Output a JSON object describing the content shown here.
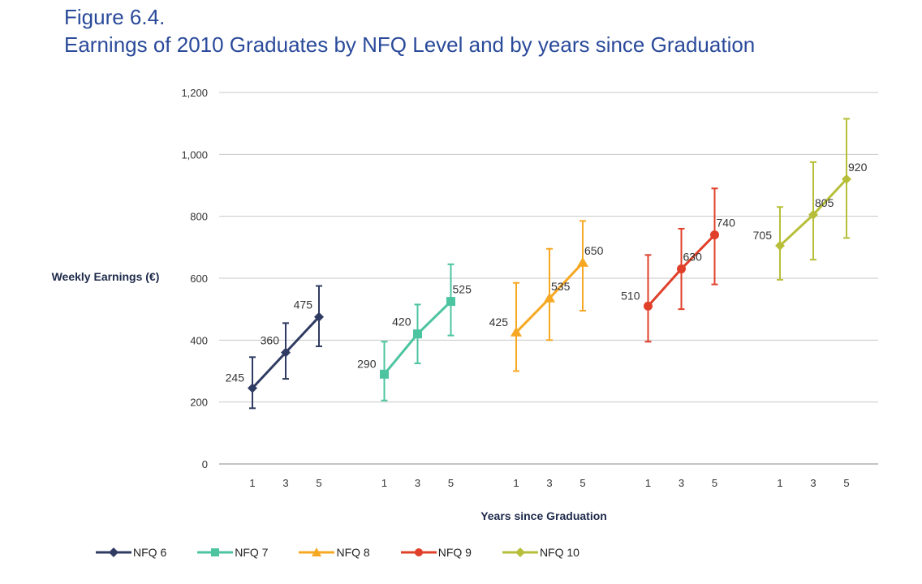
{
  "figure": {
    "number": "Figure 6.4.",
    "title": "Earnings of 2010 Graduates by NFQ Level and by years since Graduation"
  },
  "chart_data": {
    "type": "line",
    "title": "Earnings of 2010 Graduates by NFQ Level and by years since Graduation",
    "xlabel": "Years since Graduation",
    "ylabel": "Weekly Earnings (€)",
    "ylim": [
      0,
      1200
    ],
    "yticks": [
      0,
      200,
      400,
      600,
      800,
      1000,
      1200
    ],
    "ytick_labels": [
      "0",
      "200",
      "400",
      "600",
      "800",
      "1,000",
      "1,200"
    ],
    "grid": true,
    "legend_position": "bottom-left",
    "series": [
      {
        "name": "NFQ 6",
        "color": "#2f3b62",
        "marker": "diamond",
        "x": [
          "1",
          "3",
          "5"
        ],
        "values": [
          245,
          360,
          475
        ],
        "error_low": [
          180,
          275,
          380
        ],
        "error_high": [
          345,
          455,
          575
        ]
      },
      {
        "name": "NFQ 7",
        "color": "#4cc4a0",
        "marker": "square",
        "x": [
          "1",
          "3",
          "5"
        ],
        "values": [
          290,
          420,
          525
        ],
        "error_low": [
          205,
          325,
          415
        ],
        "error_high": [
          395,
          515,
          645
        ]
      },
      {
        "name": "NFQ 8",
        "color": "#f7a823",
        "marker": "triangle",
        "x": [
          "1",
          "3",
          "5"
        ],
        "values": [
          425,
          535,
          650
        ],
        "error_low": [
          300,
          400,
          495
        ],
        "error_high": [
          585,
          695,
          785
        ]
      },
      {
        "name": "NFQ 9",
        "color": "#e0402a",
        "marker": "circle",
        "x": [
          "1",
          "3",
          "5"
        ],
        "values": [
          510,
          630,
          740
        ],
        "error_low": [
          395,
          500,
          580
        ],
        "error_high": [
          675,
          760,
          890
        ]
      },
      {
        "name": "NFQ 10",
        "color": "#b7bf3a",
        "marker": "diamond",
        "x": [
          "1",
          "3",
          "5"
        ],
        "values": [
          705,
          805,
          920
        ],
        "error_low": [
          595,
          660,
          730
        ],
        "error_high": [
          830,
          975,
          1115
        ]
      }
    ]
  }
}
